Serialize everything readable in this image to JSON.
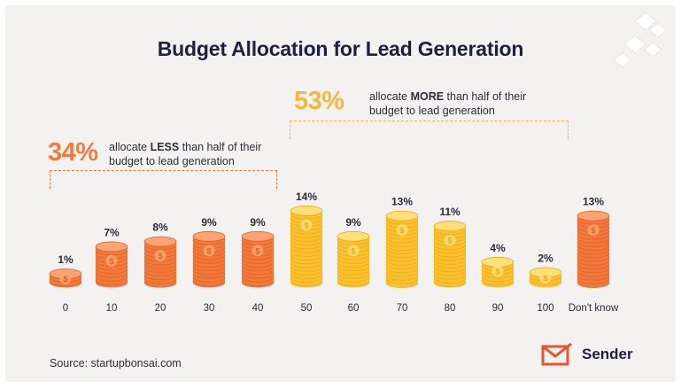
{
  "title": "Budget Allocation for Lead Generation",
  "less_group": {
    "percent": "34%",
    "text_line1": "allocate LESS than half of their",
    "text_line2": "budget to lead generation",
    "color": "#f27a3f"
  },
  "more_group": {
    "percent": "53%",
    "text_line1": "allocate MORE than half of their",
    "text_line2": "budget to lead generation",
    "color": "#f8b73a"
  },
  "colors": {
    "orange": "#f2783b",
    "orange_dark": "#d9612a",
    "orange_light": "#f9a471",
    "yellow": "#fbc02d",
    "yellow_dark": "#e9a81a",
    "yellow_light": "#ffe07a",
    "title": "#1d1f47",
    "background": "#f4f2f0"
  },
  "chart_data": {
    "type": "bar",
    "categories": [
      "0",
      "10",
      "20",
      "30",
      "40",
      "50",
      "60",
      "70",
      "80",
      "90",
      "100",
      "Don't know"
    ],
    "values": [
      1,
      7,
      8,
      9,
      9,
      14,
      9,
      13,
      11,
      4,
      2,
      13
    ],
    "labels": [
      "1%",
      "7%",
      "8%",
      "9%",
      "9%",
      "14%",
      "9%",
      "13%",
      "11%",
      "4%",
      "2%",
      "13%"
    ],
    "groups": [
      "less",
      "less",
      "less",
      "less",
      "less",
      "more",
      "more",
      "more",
      "more",
      "more",
      "more",
      "unknown"
    ],
    "title": "Budget Allocation for Lead Generation",
    "xlabel": "",
    "ylabel": "",
    "unit": "%"
  },
  "source": "Source: startupbonsai.com",
  "brand": {
    "name": "Sender",
    "icon": "envelope-logo-icon"
  }
}
